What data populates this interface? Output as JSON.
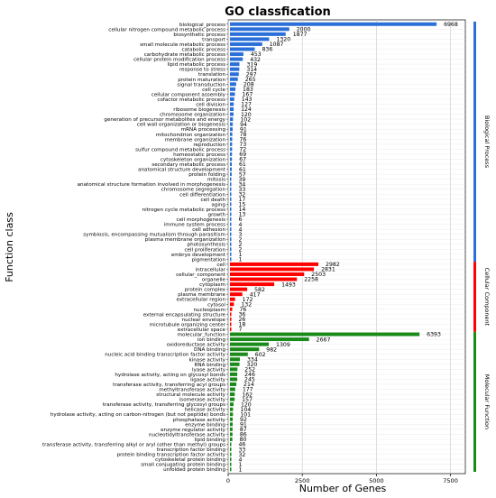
{
  "chart_data": {
    "type": "bar",
    "orientation": "horizontal",
    "title": "GO classfication",
    "xlabel": "Number of Genes",
    "ylabel": "Function class",
    "xlim": [
      0,
      8000
    ],
    "xticks": [
      0,
      2500,
      5000,
      7500
    ],
    "grid": true,
    "legend_placement": "right",
    "groups": [
      {
        "name": "Biological Process",
        "color": "#2b6fd8"
      },
      {
        "name": "Cellular Component",
        "color": "#ff0000"
      },
      {
        "name": "Molecular Function",
        "color": "#1a8a1a"
      }
    ],
    "bars": [
      {
        "label": "biological_process",
        "value": 6968,
        "group": 0
      },
      {
        "label": "cellular nitrogen compound metabolic process",
        "value": 2000,
        "group": 0
      },
      {
        "label": "biosynthetic process",
        "value": 1877,
        "group": 0
      },
      {
        "label": "transport",
        "value": 1320,
        "group": 0
      },
      {
        "label": "small molecule metabolic process",
        "value": 1087,
        "group": 0
      },
      {
        "label": "catabolic process",
        "value": 836,
        "group": 0
      },
      {
        "label": "carbohydrate metabolic process",
        "value": 453,
        "group": 0
      },
      {
        "label": "cellular protein modification process",
        "value": 432,
        "group": 0
      },
      {
        "label": "lipid metabolic process",
        "value": 319,
        "group": 0
      },
      {
        "label": "response to stress",
        "value": 314,
        "group": 0
      },
      {
        "label": "translation",
        "value": 297,
        "group": 0
      },
      {
        "label": "protein maturation",
        "value": 265,
        "group": 0
      },
      {
        "label": "signal transduction",
        "value": 208,
        "group": 0
      },
      {
        "label": "cell cycle",
        "value": 183,
        "group": 0
      },
      {
        "label": "cellular component assembly",
        "value": 167,
        "group": 0
      },
      {
        "label": "cofactor metabolic process",
        "value": 143,
        "group": 0
      },
      {
        "label": "cell division",
        "value": 127,
        "group": 0
      },
      {
        "label": "ribosome biogenesis",
        "value": 124,
        "group": 0
      },
      {
        "label": "chromosome organization",
        "value": 120,
        "group": 0
      },
      {
        "label": "generation of precursor metabolites and energy",
        "value": 102,
        "group": 0
      },
      {
        "label": "cell wall organization or biogenesis",
        "value": 94,
        "group": 0
      },
      {
        "label": "mRNA processing",
        "value": 91,
        "group": 0
      },
      {
        "label": "mitochondrion organization",
        "value": 78,
        "group": 0
      },
      {
        "label": "membrane organization",
        "value": 76,
        "group": 0
      },
      {
        "label": "reproduction",
        "value": 73,
        "group": 0
      },
      {
        "label": "sulfur compound metabolic process",
        "value": 72,
        "group": 0
      },
      {
        "label": "homeostatic process",
        "value": 69,
        "group": 0
      },
      {
        "label": "cytoskeleton organization",
        "value": 67,
        "group": 0
      },
      {
        "label": "secondary metabolic process",
        "value": 61,
        "group": 0
      },
      {
        "label": "anatomical structure development",
        "value": 61,
        "group": 0
      },
      {
        "label": "protein folding",
        "value": 57,
        "group": 0
      },
      {
        "label": "mitosis",
        "value": 39,
        "group": 0
      },
      {
        "label": "anatomical structure formation involved in morphogenesis",
        "value": 34,
        "group": 0
      },
      {
        "label": "chromosome segregation",
        "value": 33,
        "group": 0
      },
      {
        "label": "cell differentiation",
        "value": 32,
        "group": 0
      },
      {
        "label": "cell death",
        "value": 17,
        "group": 0
      },
      {
        "label": "aging",
        "value": 15,
        "group": 0
      },
      {
        "label": "nitrogen cycle metabolic process",
        "value": 14,
        "group": 0
      },
      {
        "label": "growth",
        "value": 13,
        "group": 0
      },
      {
        "label": "cell morphogenesis",
        "value": 6,
        "group": 0
      },
      {
        "label": "immune system process",
        "value": 4,
        "group": 0
      },
      {
        "label": "cell adhesion",
        "value": 4,
        "group": 0
      },
      {
        "label": "symbiosis, encompassing mutualism through parasitism",
        "value": 3,
        "group": 0
      },
      {
        "label": "plasma membrane organization",
        "value": 2,
        "group": 0
      },
      {
        "label": "photosynthesis",
        "value": 2,
        "group": 0
      },
      {
        "label": "cell proliferation",
        "value": 2,
        "group": 0
      },
      {
        "label": "embryo development",
        "value": 1,
        "group": 0
      },
      {
        "label": "pigmentation",
        "value": 1,
        "group": 0
      },
      {
        "label": "cell",
        "value": 2982,
        "group": 1
      },
      {
        "label": "intracellular",
        "value": 2831,
        "group": 1
      },
      {
        "label": "cellular_component",
        "value": 2503,
        "group": 1
      },
      {
        "label": "organelle",
        "value": 2258,
        "group": 1
      },
      {
        "label": "cytoplasm",
        "value": 1493,
        "group": 1
      },
      {
        "label": "protein complex",
        "value": 582,
        "group": 1
      },
      {
        "label": "plasma membrane",
        "value": 417,
        "group": 1
      },
      {
        "label": "extracellular region",
        "value": 172,
        "group": 1
      },
      {
        "label": "cytosol",
        "value": 132,
        "group": 1
      },
      {
        "label": "nucleoplasm",
        "value": 76,
        "group": 1
      },
      {
        "label": "external encapsulating structure",
        "value": 36,
        "group": 1
      },
      {
        "label": "nuclear envelope",
        "value": 26,
        "group": 1
      },
      {
        "label": "microtubule organizing center",
        "value": 18,
        "group": 1
      },
      {
        "label": "extracellular space",
        "value": 7,
        "group": 1
      },
      {
        "label": "molecular_function",
        "value": 6393,
        "group": 2
      },
      {
        "label": "ion binding",
        "value": 2667,
        "group": 2
      },
      {
        "label": "oxidoreductase activity",
        "value": 1309,
        "group": 2
      },
      {
        "label": "DNA binding",
        "value": 982,
        "group": 2
      },
      {
        "label": "nucleic acid binding transcription factor activity",
        "value": 602,
        "group": 2
      },
      {
        "label": "kinase activity",
        "value": 334,
        "group": 2
      },
      {
        "label": "RNA binding",
        "value": 320,
        "group": 2
      },
      {
        "label": "lyase activity",
        "value": 252,
        "group": 2
      },
      {
        "label": "hydrolase activity, acting on glycosyl bonds",
        "value": 246,
        "group": 2
      },
      {
        "label": "ligase activity",
        "value": 245,
        "group": 2
      },
      {
        "label": "transferase activity, transferring acyl groups",
        "value": 214,
        "group": 2
      },
      {
        "label": "methyltransferase activity",
        "value": 177,
        "group": 2
      },
      {
        "label": "structural molecule activity",
        "value": 162,
        "group": 2
      },
      {
        "label": "isomerase activity",
        "value": 157,
        "group": 2
      },
      {
        "label": "transferase activity, transferring glycosyl groups",
        "value": 120,
        "group": 2
      },
      {
        "label": "helicase activity",
        "value": 104,
        "group": 2
      },
      {
        "label": "hydrolase activity, acting on carbon-nitrogen (but not peptide) bonds",
        "value": 101,
        "group": 2
      },
      {
        "label": "phosphatase activity",
        "value": 92,
        "group": 2
      },
      {
        "label": "enzyme binding",
        "value": 91,
        "group": 2
      },
      {
        "label": "enzyme regulator activity",
        "value": 87,
        "group": 2
      },
      {
        "label": "nucleotidyltransferase activity",
        "value": 86,
        "group": 2
      },
      {
        "label": "lipid binding",
        "value": 80,
        "group": 2
      },
      {
        "label": "transferase activity, transferring alkyl or aryl (other than methyl) groups",
        "value": 46,
        "group": 2
      },
      {
        "label": "transcription factor binding",
        "value": 33,
        "group": 2
      },
      {
        "label": "protein binding transcription factor activity",
        "value": 32,
        "group": 2
      },
      {
        "label": "cytoskeletal protein binding",
        "value": 4,
        "group": 2
      },
      {
        "label": "small conjugating protein binding",
        "value": 1,
        "group": 2
      },
      {
        "label": "unfolded protein binding",
        "value": 1,
        "group": 2
      }
    ]
  }
}
